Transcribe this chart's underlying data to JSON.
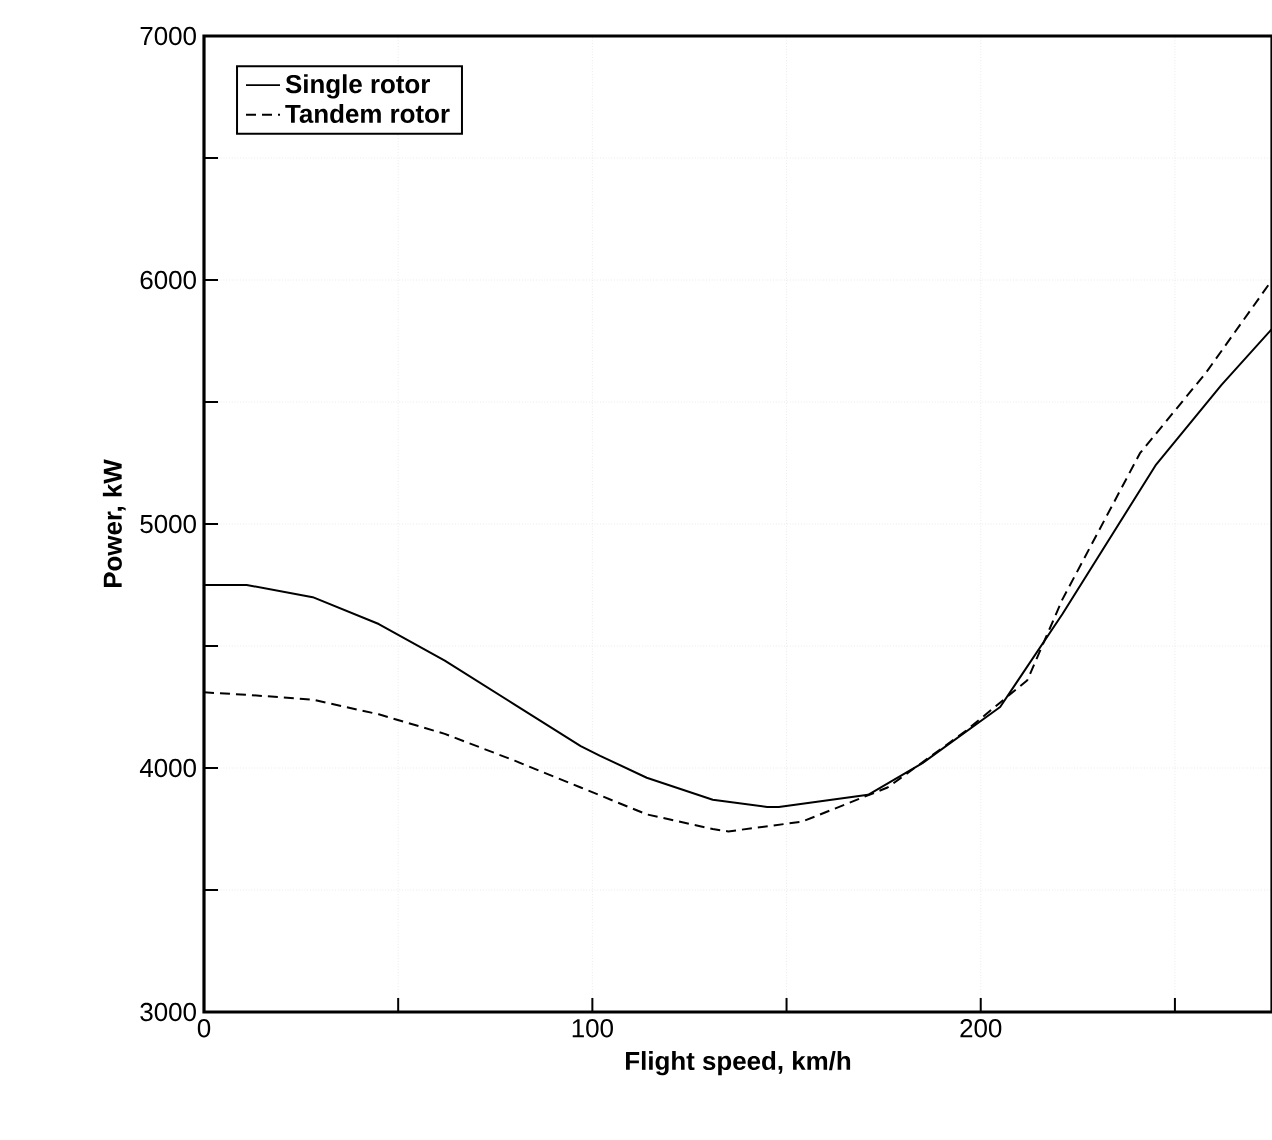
{
  "chart_data": {
    "type": "line",
    "xlabel": "Flight speed, km/h",
    "ylabel": "Power, kW",
    "xlim": [
      0,
      275
    ],
    "ylim": [
      3000,
      7000
    ],
    "xticks": [
      0,
      {
        "value": 50,
        "label": null
      },
      100,
      {
        "value": 150,
        "label": null
      },
      200,
      {
        "value": 250,
        "label": null
      }
    ],
    "yticks": [
      3000,
      {
        "value": 3500,
        "label": null
      },
      4000,
      {
        "value": 4500,
        "label": null
      },
      5000,
      {
        "value": 5500,
        "label": null
      },
      6000,
      {
        "value": 6500,
        "label": null
      },
      7000
    ],
    "grid": true,
    "legend": "top left",
    "marker": "none",
    "series": [
      {
        "name": "Single rotor",
        "color": "#000000",
        "line_style": "solid",
        "x": [
          0,
          11,
          28,
          45,
          62,
          80,
          97,
          102,
          114,
          131,
          145,
          148,
          171,
          185,
          205,
          221,
          245,
          262,
          275
        ],
        "values": [
          4750,
          4750,
          4700,
          4590,
          4440,
          4260,
          4090,
          4050,
          3960,
          3870,
          3840,
          3840,
          3890,
          4020,
          4250,
          4630,
          5240,
          5570,
          5800
        ]
      },
      {
        "name": "Tandem rotor",
        "color": "#000000",
        "line_style": "dashed",
        "x": [
          0,
          11,
          28,
          45,
          62,
          80,
          97,
          114,
          131,
          135,
          154,
          176,
          196,
          212,
          221,
          241,
          258,
          275
        ],
        "values": [
          4310,
          4300,
          4280,
          4220,
          4140,
          4030,
          3920,
          3810,
          3750,
          3740,
          3780,
          3920,
          4150,
          4360,
          4690,
          5290,
          5620,
          6000
        ]
      }
    ]
  }
}
